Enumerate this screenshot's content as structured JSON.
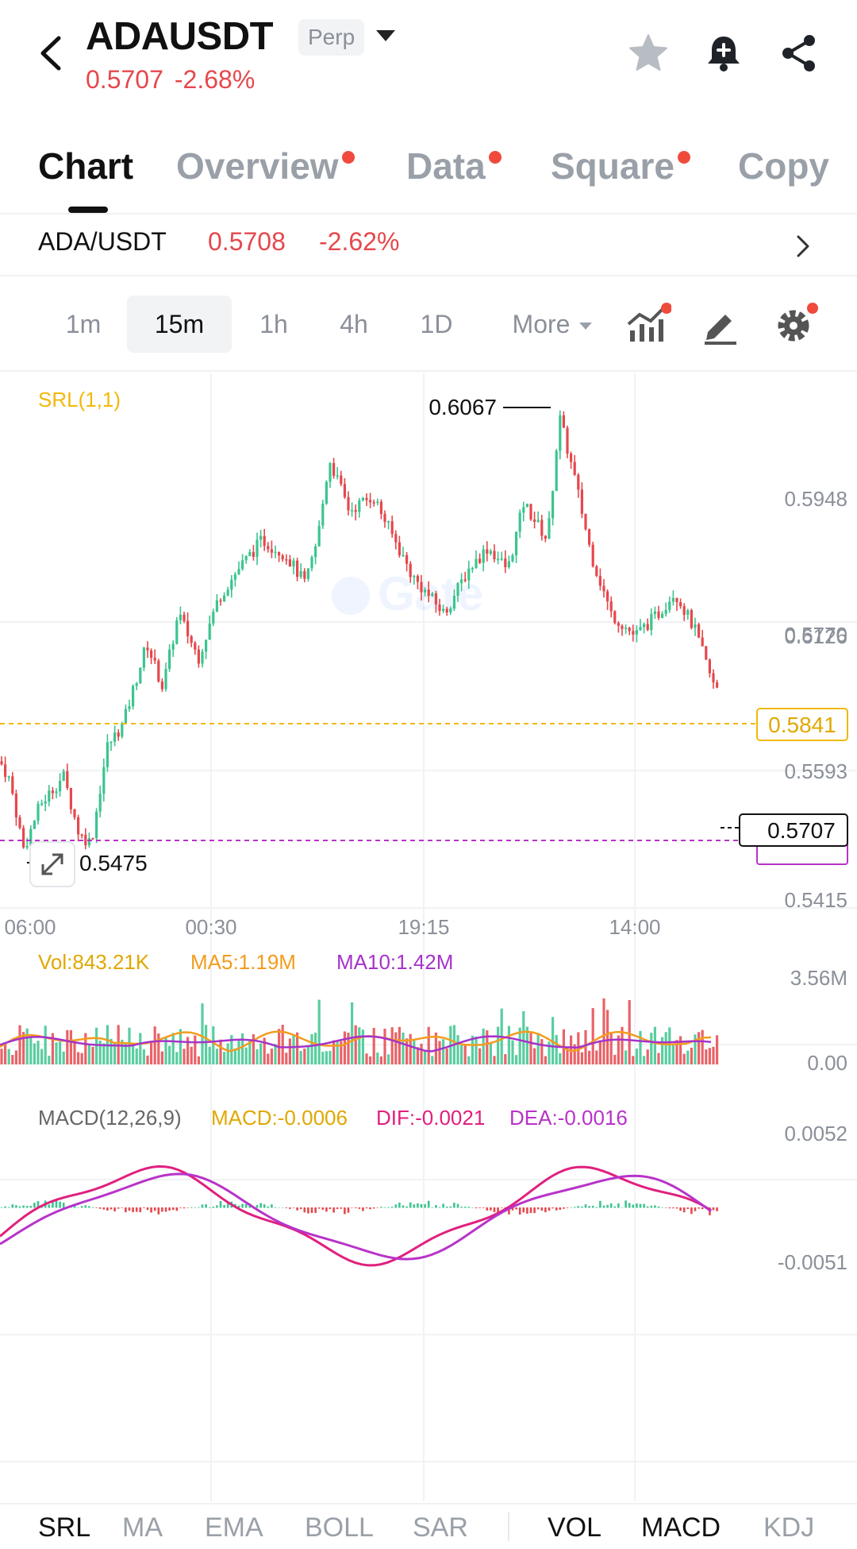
{
  "header": {
    "symbol": "ADAUSDT",
    "contract_type": "Perp",
    "last_price": "0.5707",
    "change_pct": "-2.68%",
    "icons": [
      "back-arrow-icon",
      "star-icon",
      "bell-plus-icon",
      "share-icon"
    ]
  },
  "tabs": [
    {
      "label": "Chart",
      "active": true,
      "dot": false
    },
    {
      "label": "Overview",
      "active": false,
      "dot": true
    },
    {
      "label": "Data",
      "active": false,
      "dot": true
    },
    {
      "label": "Square",
      "active": false,
      "dot": true
    },
    {
      "label": "Copy",
      "active": false,
      "dot": false
    }
  ],
  "pair": {
    "name": "ADA/USDT",
    "price": "0.5708",
    "change_pct": "-2.62%"
  },
  "intervals": {
    "items": [
      "1m",
      "15m",
      "1h",
      "4h",
      "1D"
    ],
    "active": "15m",
    "more_label": "More"
  },
  "colors": {
    "up": "#3cc48f",
    "down": "#e5484d",
    "srl_line": "#f0b90b",
    "purple_line": "#b833c9",
    "ma5": "#f39c1e",
    "ma10": "#a633c9",
    "dif": "#e0207e",
    "dea": "#b833c9"
  },
  "main_chart": {
    "indicator_label": "SRL(1,1)",
    "y_ticks": [
      "0.6126",
      "0.5948",
      "0.5770",
      "0.5593",
      "0.5415"
    ],
    "x_ticks": [
      "06:00",
      "00:30",
      "19:15",
      "14:00"
    ],
    "high_label": "0.6067",
    "low_label": "0.5475",
    "srl_level": "0.5841",
    "current_price": "0.5707",
    "watermark": "Gate"
  },
  "volume_panel": {
    "vol": "Vol:843.21K",
    "ma5": "MA5:1.19M",
    "ma10": "MA10:1.42M",
    "y_max": "3.56M",
    "y_min": "0.00"
  },
  "macd_panel": {
    "label": "MACD(12,26,9)",
    "macd": "MACD:-0.0006",
    "dif": "DIF:-0.0021",
    "dea": "DEA:-0.0016",
    "y_max": "0.0052",
    "y_min": "-0.0051"
  },
  "indicator_tabs": {
    "main": [
      "SRL",
      "MA",
      "EMA",
      "BOLL",
      "SAR"
    ],
    "sub": [
      "VOL",
      "MACD",
      "KDJ"
    ],
    "active": [
      "SRL",
      "VOL",
      "MACD"
    ]
  }
}
